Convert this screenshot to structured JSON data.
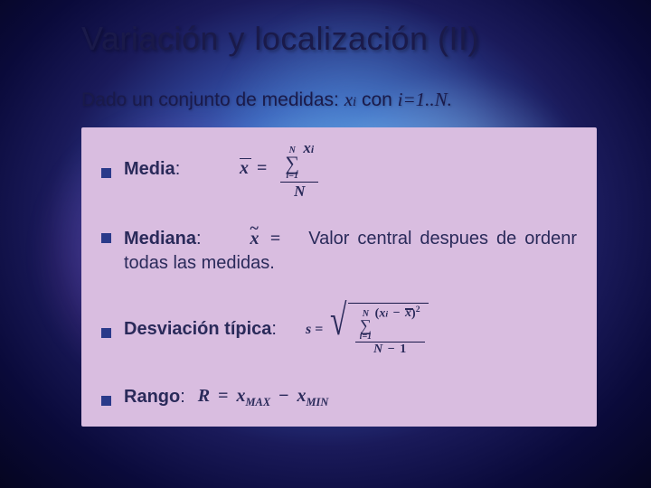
{
  "title": "Variación y localización (II)",
  "intro": {
    "prefix": "Dado un conjunto de medidas: ",
    "var": "x",
    "sub": "i",
    "mid": " con ",
    "eq": "i=1..N.",
    "fontsize": 21
  },
  "panel": {
    "background_color": "#d9bde0",
    "bullet_color": "#2a3a8a",
    "text_color": "#2a2a5a"
  },
  "items": {
    "media": {
      "label": "Media",
      "colon": ":",
      "formula": {
        "lhs_var": "x",
        "eq": "=",
        "sum_upper": "N",
        "sum_lower": "i=1",
        "num_var": "x",
        "num_sub": "i",
        "den": "N"
      }
    },
    "mediana": {
      "label": "Mediana",
      "colon": ":",
      "tilde_var": "x",
      "eq": "=",
      "desc_lead": "Valor central despues de",
      "desc_rest": "ordenr todas las medidas."
    },
    "desviacion": {
      "label": "Desviación típica",
      "colon": ":",
      "formula": {
        "lhs": "s",
        "eq": "=",
        "sum_upper": "N",
        "sum_lower": "i=1",
        "open": "(",
        "xi_var": "x",
        "xi_sub": "i",
        "minus": "−",
        "xbar_var": "x",
        "close": ")",
        "power": "2",
        "den_a": "N",
        "den_minus": "−",
        "den_b": "1"
      }
    },
    "rango": {
      "label": "Rango",
      "colon": ":",
      "formula": {
        "R": "R",
        "eq": "=",
        "x1": "x",
        "sub1": "MAX",
        "minus": "−",
        "x2": "x",
        "sub2": "MIN"
      }
    }
  },
  "colors": {
    "title_color": "#1a1a4a",
    "bg_center": "#7bb8e8",
    "bg_outer": "#050520"
  }
}
